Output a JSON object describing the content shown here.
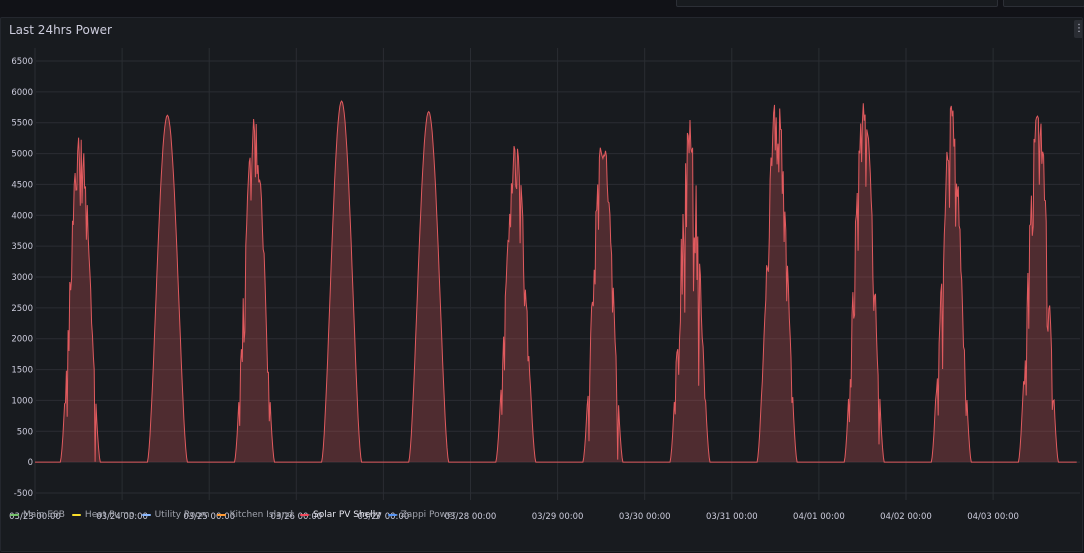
{
  "panel": {
    "title": "Last 24hrs Power",
    "menu_icon": "⋮"
  },
  "colors": {
    "background": "#181b1f",
    "grid": "#2a2d33",
    "solar_line": "#e05a5e",
    "solar_fill": "rgba(224,90,94,0.28)"
  },
  "chart_data": {
    "type": "area",
    "title": "Last 24hrs Power",
    "xlabel": "",
    "ylabel": "",
    "ylim": [
      -500,
      6500
    ],
    "grid": true,
    "legend_position": "bottom",
    "y_ticks": [
      6500,
      6000,
      5500,
      5000,
      4500,
      4000,
      3500,
      3000,
      2500,
      2000,
      1500,
      1000,
      500,
      0,
      -500
    ],
    "x_ticks": [
      "03/23 00:00",
      "03/24 00:00",
      "03/25 00:00",
      "03/26 00:00",
      "03/27 00:00",
      "03/28 00:00",
      "03/29 00:00",
      "03/30 00:00",
      "03/31 00:00",
      "04/01 00:00",
      "04/02 00:00",
      "04/03 00:00"
    ],
    "x_range_days": [
      0,
      11.96
    ],
    "series": [
      {
        "name": "Main ESB",
        "color": "#73bf69",
        "values": []
      },
      {
        "name": "Heat Pump",
        "color": "#fade2a",
        "values": []
      },
      {
        "name": "Utility Room",
        "color": "#8ab8ff",
        "values": []
      },
      {
        "name": "Kitchen Island",
        "color": "#ff9830",
        "values": []
      },
      {
        "name": "Solar PV Shelly",
        "color": "#f2495c",
        "daily_peaks": [
          {
            "day": "03/23",
            "peak": 5450,
            "noise": 1300
          },
          {
            "day": "03/24",
            "peak": 5620,
            "noise": 150
          },
          {
            "day": "03/25",
            "peak": 5600,
            "noise": 1300
          },
          {
            "day": "03/26",
            "peak": 5850,
            "noise": 150
          },
          {
            "day": "03/27",
            "peak": 5680,
            "noise": 150
          },
          {
            "day": "03/28",
            "peak": 5200,
            "noise": 1200
          },
          {
            "day": "03/29",
            "peak": 5300,
            "noise": 1400
          },
          {
            "day": "03/30",
            "peak": 5620,
            "noise": 2600
          },
          {
            "day": "03/31",
            "peak": 6060,
            "noise": 1300
          },
          {
            "day": "04/01",
            "peak": 5900,
            "noise": 1500
          },
          {
            "day": "04/02",
            "peak": 5800,
            "noise": 2500
          },
          {
            "day": "04/03",
            "peak": 5800,
            "noise": 1800
          }
        ],
        "baseline": 0
      },
      {
        "name": "Zappi Power",
        "color": "#5794f2",
        "values": []
      }
    ]
  },
  "legend": [
    {
      "label": "Main ESB",
      "color": "#73bf69",
      "active": false
    },
    {
      "label": "Heat Pump",
      "color": "#fade2a",
      "active": false
    },
    {
      "label": "Utility Room",
      "color": "#8ab8ff",
      "active": false
    },
    {
      "label": "Kitchen Island",
      "color": "#ff9830",
      "active": false
    },
    {
      "label": "Solar PV Shelly",
      "color": "#f2495c",
      "active": true
    },
    {
      "label": "Zappi Power",
      "color": "#5794f2",
      "active": false
    }
  ]
}
